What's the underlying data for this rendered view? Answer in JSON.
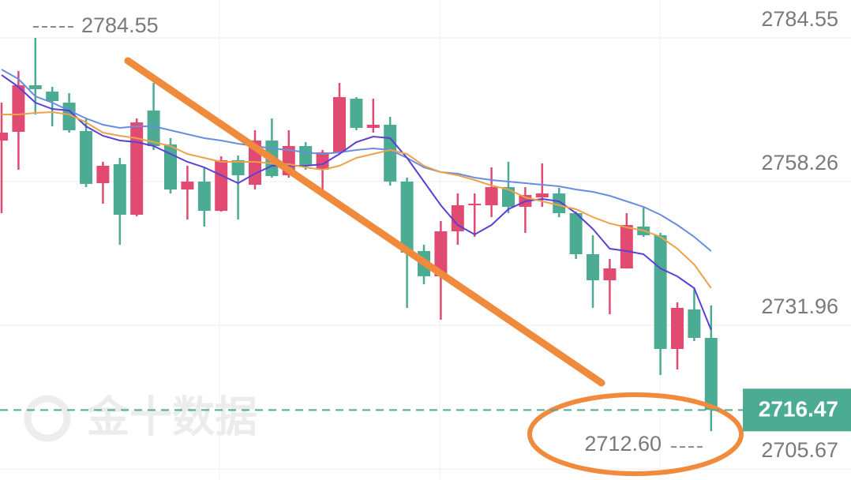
{
  "chart_data": {
    "type": "candlestick",
    "watermark": "金十数据",
    "ylim": [
      2703.66,
      2791.48
    ],
    "yticks": [
      2784.55,
      2758.26,
      2731.96,
      2705.67
    ],
    "grid": true,
    "up_color": "#e14b72",
    "down_color": "#4cab93",
    "open": [
      2765.77,
      2767.36,
      2775.88,
      2774.72,
      2772.7,
      2767.5,
      2757.97,
      2761.44,
      2752.19,
      2771.26,
      2765.05,
      2756.81,
      2758.26,
      2752.91,
      2762.16,
      2757.68,
      2765.77,
      2759.41,
      2764.76,
      2760.43,
      2763.6,
      2773.42,
      2768.08,
      2768.66,
      2758.26,
      2745.55,
      2740.93,
      2749.16,
      2753.93,
      2753.93,
      2757.25,
      2753.64,
      2755.37,
      2756.09,
      2752.48,
      2744.97,
      2740.2,
      2742.37,
      2750.03,
      2748.44,
      2727.64,
      2734.86,
      2729.66
    ],
    "high": [
      2772.7,
      2778.48,
      2784.55,
      2775.59,
      2774.44,
      2769.81,
      2761.87,
      2762.59,
      2769.81,
      2776.31,
      2766.2,
      2761.15,
      2760.86,
      2762.88,
      2763.03,
      2767.65,
      2769.81,
      2767.65,
      2765.48,
      2764.04,
      2776.31,
      2773.71,
      2773.42,
      2770.1,
      2758.98,
      2746.7,
      2751.04,
      2756.09,
      2756.09,
      2760.86,
      2761.87,
      2757.25,
      2761.58,
      2757.1,
      2752.77,
      2748.44,
      2744.1,
      2752.48,
      2753.49,
      2748.87,
      2736.16,
      2738.76,
      2735.58
    ],
    "low": [
      2752.48,
      2760.43,
      2770.54,
      2768.37,
      2767.21,
      2757.25,
      2754.21,
      2746.7,
      2751.9,
      2764.04,
      2756.09,
      2751.33,
      2750.03,
      2752.77,
      2751.33,
      2756.81,
      2758.98,
      2758.98,
      2760.43,
      2755.37,
      2763.31,
      2767.65,
      2767.21,
      2757.54,
      2735.15,
      2739.48,
      2732.98,
      2746.7,
      2748.15,
      2751.76,
      2752.48,
      2748.87,
      2753.64,
      2751.76,
      2744.1,
      2735.15,
      2733.99,
      2742.37,
      2748.15,
      2722.87,
      2723.88,
      2729.08,
      2712.6
    ],
    "close": [
      2767.21,
      2775.88,
      2775.16,
      2772.99,
      2767.65,
      2757.83,
      2761.15,
      2752.19,
      2769.09,
      2764.76,
      2756.81,
      2758.26,
      2752.91,
      2762.16,
      2759.41,
      2765.77,
      2759.27,
      2764.76,
      2761.15,
      2763.6,
      2773.71,
      2768.08,
      2768.66,
      2758.26,
      2745.26,
      2740.93,
      2749.16,
      2753.93,
      2754.21,
      2757.25,
      2753.64,
      2755.8,
      2756.09,
      2752.48,
      2744.97,
      2740.2,
      2742.37,
      2750.31,
      2748.44,
      2727.64,
      2735.15,
      2729.66,
      2716.47
    ],
    "moving_averages": [
      {
        "color": "#6a8de0",
        "values": [
          2778.77,
          2777.04,
          2773.86,
          2772.7,
          2771.26,
          2769.81,
          2768.66,
          2768.08,
          2768.37,
          2768.37,
          2767.65,
          2766.93,
          2766.2,
          2765.77,
          2765.19,
          2764.76,
          2764.33,
          2764.04,
          2763.6,
          2763.31,
          2763.6,
          2764.04,
          2764.33,
          2764.04,
          2762.59,
          2760.86,
          2759.99,
          2759.7,
          2758.98,
          2758.55,
          2758.26,
          2757.97,
          2757.68,
          2757.39,
          2756.81,
          2756.38,
          2755.66,
          2754.65,
          2753.64,
          2752.19,
          2750.31,
          2748.15,
          2745.55
        ]
      },
      {
        "color": "#5b3fd6",
        "values": [
          2777.76,
          2775.59,
          2772.7,
          2771.55,
          2771.26,
          2768.37,
          2766.64,
          2765.77,
          2765.48,
          2764.76,
          2763.31,
          2761.87,
          2760.86,
          2759.41,
          2757.97,
          2759.7,
          2761.15,
          2761.15,
          2761.15,
          2761.44,
          2763.31,
          2765.48,
          2766.49,
          2766.2,
          2762.59,
          2758.26,
          2753.93,
          2750.31,
          2748.58,
          2750.31,
          2753.2,
          2754.65,
          2755.08,
          2754.65,
          2752.48,
          2749.59,
          2745.98,
          2745.55,
          2744.97,
          2742.37,
          2740.93,
          2738.76,
          2731.1
        ]
      },
      {
        "color": "#eda24a",
        "values": [
          2770.54,
          2770.54,
          2770.83,
          2770.97,
          2770.54,
          2769.09,
          2767.21,
          2766.64,
          2766.2,
          2765.48,
          2764.76,
          2763.31,
          2762.59,
          2761.87,
          2761.87,
          2761.87,
          2761.58,
          2761.44,
          2760.86,
          2760.43,
          2761.15,
          2762.59,
          2763.31,
          2764.04,
          2763.31,
          2761.15,
          2759.99,
          2759.41,
          2758.55,
          2757.54,
          2756.81,
          2755.37,
          2754.65,
          2753.93,
          2753.2,
          2751.76,
          2750.6,
          2749.88,
          2749.3,
          2748.15,
          2745.98,
          2743.09,
          2738.76
        ]
      }
    ],
    "high_marker": 2784.55,
    "low_marker": {
      "value": 2712.6,
      "label": "2712.60"
    },
    "last_price": 2716.47,
    "last_price_color": "#4cab93"
  }
}
